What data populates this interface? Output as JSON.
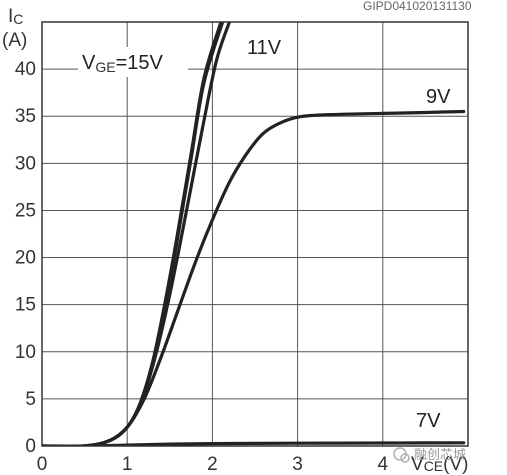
{
  "chart_data": {
    "type": "line",
    "code": "GIPD041020131130",
    "ylabel_main": "I",
    "ylabel_sub": "C",
    "yunit": "(A)",
    "xlabel_main": "V",
    "xlabel_sub": "CE",
    "xunit": "(V)",
    "xlim": [
      0,
      5
    ],
    "ylim": [
      0,
      45
    ],
    "xticks": [
      "0",
      "1",
      "2",
      "3",
      "4"
    ],
    "yticks": [
      "0",
      "5",
      "10",
      "15",
      "20",
      "25",
      "30",
      "35",
      "40"
    ],
    "grid": true,
    "annotations": {
      "vge_main": "V",
      "vge_sub": "GE",
      "vge_rest": "=15V",
      "v11": "11V",
      "v9": "9V",
      "v7": "7V"
    },
    "series": [
      {
        "x": [
          0,
          0.5,
          0.8,
          1.0,
          1.15,
          1.3,
          1.45,
          1.6,
          1.75,
          1.9,
          2.1
        ],
        "y": [
          0,
          0,
          0.6,
          2.0,
          4.5,
          9.0,
          15.5,
          23.0,
          31.0,
          39.0,
          45
        ]
      },
      {
        "x": [
          0,
          0.5,
          0.8,
          1.0,
          1.15,
          1.3,
          1.45,
          1.6,
          1.75,
          1.9,
          2.12
        ],
        "y": [
          0,
          0,
          0.6,
          2.0,
          4.4,
          8.8,
          15.0,
          22.5,
          30.5,
          38.5,
          45
        ]
      },
      {
        "x": [
          0,
          0.5,
          0.8,
          1.0,
          1.15,
          1.3,
          1.45,
          1.6,
          1.75,
          1.9,
          2.05,
          2.2
        ],
        "y": [
          0,
          0,
          0.6,
          2.0,
          4.3,
          8.5,
          14.0,
          20.5,
          27.5,
          34.5,
          41.0,
          45
        ]
      },
      {
        "x": [
          0,
          0.5,
          0.8,
          1.0,
          1.2,
          1.4,
          1.6,
          1.8,
          2.0,
          2.2,
          2.4,
          2.6,
          2.8,
          3.0,
          3.2,
          3.5,
          4.0,
          4.5,
          4.95
        ],
        "y": [
          0,
          0,
          0.6,
          2.0,
          5.0,
          9.5,
          14.5,
          19.5,
          24.0,
          28.0,
          31.0,
          33.2,
          34.3,
          34.9,
          35.1,
          35.2,
          35.3,
          35.4,
          35.5
        ]
      },
      {
        "x": [
          0,
          0.5,
          1.0,
          1.5,
          2.0,
          2.5,
          3.0,
          3.5,
          4.0,
          4.5,
          4.95
        ],
        "y": [
          0,
          0,
          0.1,
          0.2,
          0.25,
          0.28,
          0.3,
          0.31,
          0.32,
          0.33,
          0.34
        ]
      }
    ]
  },
  "watermark": {
    "text": "融创芯城"
  }
}
